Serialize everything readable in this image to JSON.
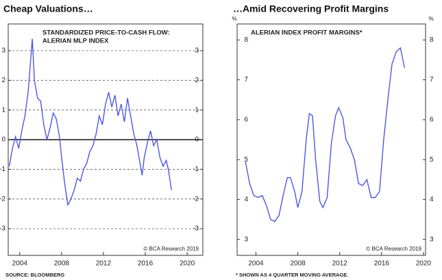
{
  "chart_data": [
    {
      "type": "line",
      "title": "Cheap Valuations…",
      "annotation_title": [
        "STANDARDIZED PRICE-TO-CASH FLOW:",
        "ALERIAN MLP INDEX"
      ],
      "credit": "© BCA Research 2019",
      "source": "SOURCE: BLOOMBERG",
      "xlim": [
        2002.9,
        2021.5
      ],
      "xticks": [
        2004,
        2008,
        2012,
        2016,
        2020
      ],
      "ylim": [
        -3.9,
        3.9
      ],
      "yticks": [
        3,
        2,
        1,
        0,
        -1,
        -2,
        -3
      ],
      "grid": true,
      "zero_line": true,
      "series": [
        {
          "color": "#4b57e6",
          "x": [
            2003.0,
            2003.3,
            2003.6,
            2003.9,
            2004.2,
            2004.5,
            2004.8,
            2005.0,
            2005.2,
            2005.4,
            2005.7,
            2006.0,
            2006.3,
            2006.6,
            2006.9,
            2007.2,
            2007.5,
            2007.8,
            2008.0,
            2008.3,
            2008.6,
            2008.9,
            2009.2,
            2009.5,
            2009.8,
            2010.1,
            2010.4,
            2010.7,
            2011.0,
            2011.3,
            2011.6,
            2011.9,
            2012.2,
            2012.5,
            2012.8,
            2013.1,
            2013.4,
            2013.7,
            2014.0,
            2014.3,
            2014.6,
            2014.9,
            2015.2,
            2015.5,
            2015.7,
            2015.9,
            2016.2,
            2016.5,
            2016.8,
            2017.1,
            2017.4,
            2017.7,
            2018.0,
            2018.2,
            2018.5
          ],
          "values": [
            -0.9,
            -0.3,
            0.1,
            -0.3,
            0.3,
            0.8,
            1.6,
            2.5,
            3.4,
            2.0,
            1.4,
            1.3,
            0.5,
            0.0,
            0.4,
            0.9,
            0.7,
            0.1,
            -0.6,
            -1.5,
            -2.2,
            -2.0,
            -1.7,
            -1.3,
            -1.4,
            -1.0,
            -0.8,
            -0.4,
            -0.2,
            0.2,
            0.8,
            0.5,
            1.2,
            1.6,
            1.1,
            1.5,
            0.8,
            1.2,
            0.6,
            1.4,
            0.8,
            0.2,
            -0.2,
            -0.8,
            -1.2,
            -0.6,
            -0.1,
            0.3,
            -0.2,
            0.0,
            -0.6,
            -0.9,
            -0.7,
            -1.0,
            -1.7
          ]
        }
      ]
    },
    {
      "type": "line",
      "title": "…Amid Recovering Profit Margins",
      "annotation_title": [
        "ALERIAN INDEX PROFIT MARGINS*"
      ],
      "credit": "© BCA Research 2019",
      "source": "* SHOWN AS 4 QUARTER MOVING AVERAGE.",
      "y_label": "%",
      "xlim": [
        2002.2,
        2020.2
      ],
      "xticks": [
        2004,
        2008,
        2012,
        2016,
        2020
      ],
      "ylim": [
        2.6,
        8.4
      ],
      "yticks": [
        8,
        7,
        6,
        5,
        4,
        3
      ],
      "grid": false,
      "zero_line": false,
      "series": [
        {
          "color": "#4b57e6",
          "x": [
            2003.0,
            2003.4,
            2003.8,
            2004.2,
            2004.6,
            2005.0,
            2005.4,
            2005.8,
            2006.2,
            2006.6,
            2007.0,
            2007.3,
            2007.7,
            2008.0,
            2008.4,
            2008.8,
            2009.1,
            2009.4,
            2009.7,
            2010.1,
            2010.4,
            2010.8,
            2011.2,
            2011.6,
            2011.9,
            2012.3,
            2012.6,
            2013.0,
            2013.4,
            2013.8,
            2014.2,
            2014.6,
            2015.0,
            2015.4,
            2015.8,
            2016.2,
            2016.6,
            2017.0,
            2017.4,
            2017.8,
            2018.2
          ],
          "values": [
            4.95,
            4.4,
            4.1,
            4.05,
            4.1,
            3.85,
            3.5,
            3.45,
            3.6,
            4.1,
            4.55,
            4.55,
            4.2,
            3.8,
            4.2,
            5.5,
            6.15,
            6.1,
            5.0,
            3.95,
            3.8,
            4.05,
            5.4,
            6.1,
            6.3,
            6.05,
            5.5,
            5.3,
            5.0,
            4.4,
            4.35,
            4.5,
            4.05,
            4.05,
            4.2,
            5.5,
            6.5,
            7.4,
            7.7,
            7.8,
            7.3
          ]
        }
      ]
    }
  ]
}
